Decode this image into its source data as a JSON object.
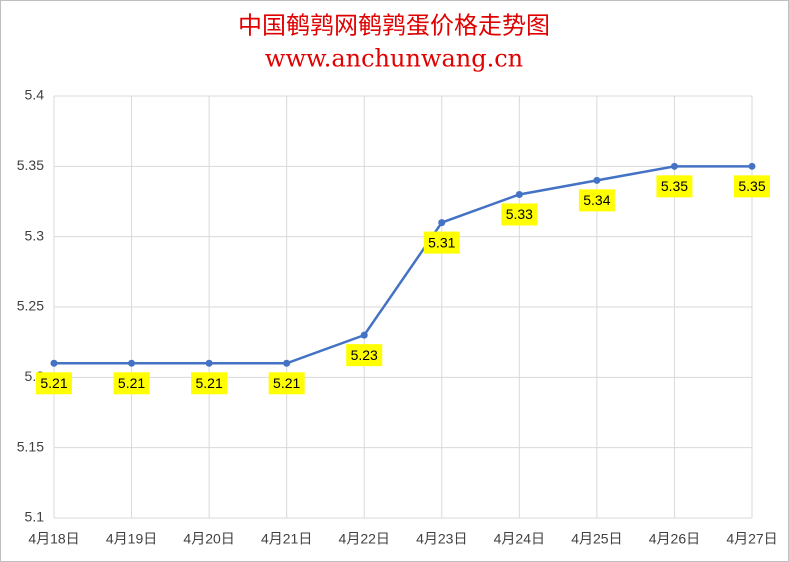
{
  "chart_data": {
    "type": "line",
    "title": "中国鹌鹑网鹌鹑蛋价格走势图",
    "subtitle": "www.anchunwang.cn",
    "categories": [
      "4月18日",
      "4月19日",
      "4月20日",
      "4月21日",
      "4月22日",
      "4月23日",
      "4月24日",
      "4月25日",
      "4月26日",
      "4月27日"
    ],
    "values": [
      5.21,
      5.21,
      5.21,
      5.21,
      5.23,
      5.31,
      5.33,
      5.34,
      5.35,
      5.35
    ],
    "color": "#4472c4",
    "label_background": "#ffff00",
    "ylim": [
      5.1,
      5.4
    ],
    "yticks": [
      5.1,
      5.15,
      5.2,
      5.25,
      5.3,
      5.35,
      5.4
    ],
    "grid": true
  }
}
